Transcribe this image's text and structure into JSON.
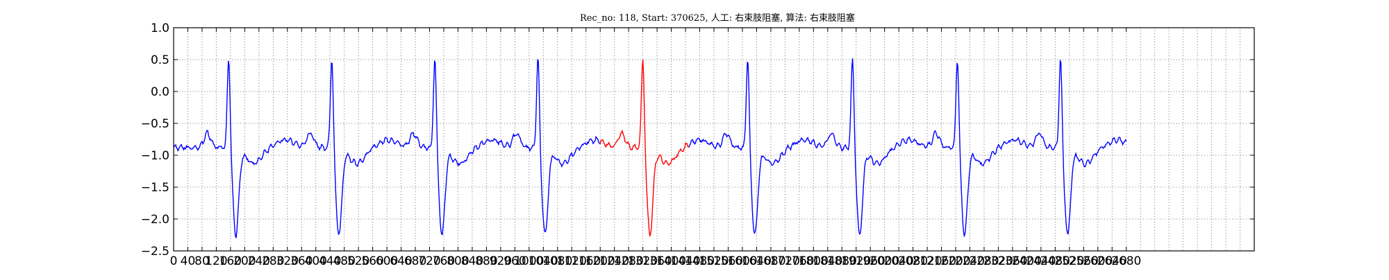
{
  "chart_data": {
    "type": "line",
    "title": "Rec_no: 118, Start: 370625, 人工: 右束肢阻塞, 算法: 右束肢阻塞",
    "xlabel": "",
    "ylabel": "",
    "xlim": [
      0,
      3040
    ],
    "ylim": [
      -2.5,
      1.0
    ],
    "grid": true,
    "colors": {
      "normal": "#0000ff",
      "highlight": "#ff0000",
      "axes": "#000000",
      "grid": "#555555"
    },
    "yticks": [
      "1.0",
      "0.5",
      "0.0",
      "−0.5",
      "−1.0",
      "−1.5",
      "−2.0",
      "−2.5"
    ],
    "ytick_values": [
      1.0,
      0.5,
      0.0,
      -0.5,
      -1.0,
      -1.5,
      -2.0,
      -2.5
    ],
    "xtick_step": 40,
    "xtick_labels": [
      "0",
      "40",
      "80",
      "120",
      "160",
      "200",
      "240",
      "280",
      "320",
      "360",
      "400",
      "440",
      "480",
      "520",
      "560",
      "600",
      "640",
      "680",
      "720",
      "760",
      "800",
      "840",
      "880",
      "920",
      "960",
      "1000",
      "1040",
      "1080",
      "1120",
      "1160",
      "1200",
      "1240",
      "1280",
      "1320",
      "1360",
      "1400",
      "1440",
      "1480",
      "1520",
      "1560",
      "1600",
      "1640",
      "1680",
      "1720",
      "1760",
      "1800",
      "1840",
      "1880",
      "1920",
      "1960",
      "2000",
      "2040",
      "2080",
      "2120",
      "2160",
      "2200",
      "2240",
      "2280",
      "2320",
      "2360",
      "2400",
      "2440",
      "2480",
      "2520",
      "2560",
      "2600",
      "2640",
      "2680"
    ],
    "highlight_range": [
      1200,
      1450
    ],
    "beat_positions": [
      155,
      445,
      735,
      1025,
      1320,
      1615,
      1910,
      2205,
      2495
    ],
    "x_end": 2680,
    "series": [
      {
        "values_note": "",
        "x": [],
        "y": []
      }
    ]
  }
}
